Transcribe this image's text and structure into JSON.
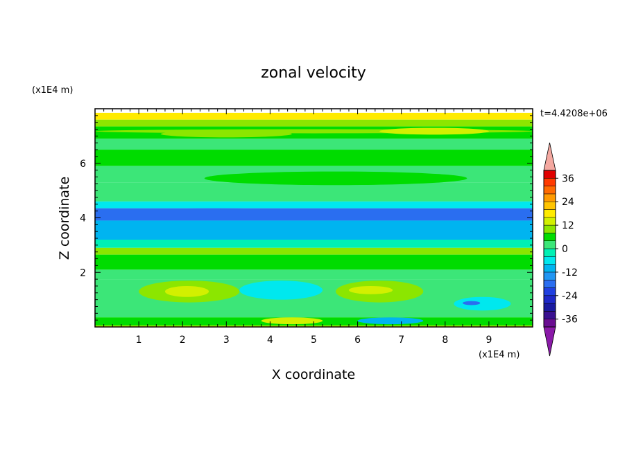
{
  "chart_data": {
    "type": "heatmap",
    "title": "zonal velocity",
    "xlabel": "X coordinate",
    "ylabel": "Z coordinate",
    "x_unit_label": "(x1E4 m)",
    "y_unit_label": "(x1E4 m)",
    "time_label": "t=4.4208e+06",
    "xlim": [
      0,
      10
    ],
    "ylim": [
      0,
      8
    ],
    "xticks": [
      1,
      2,
      3,
      4,
      5,
      6,
      7,
      8,
      9
    ],
    "yticks": [
      2,
      4,
      6
    ],
    "colorbar": {
      "levels": [
        -40,
        -36,
        -32,
        -28,
        -24,
        -20,
        -16,
        -12,
        -8,
        -4,
        0,
        4,
        8,
        12,
        16,
        20,
        24,
        28,
        32,
        36,
        40
      ],
      "tick_labels": [
        "36",
        "24",
        "12",
        "0",
        "-12",
        "-24",
        "-36"
      ],
      "tick_values": [
        36,
        24,
        12,
        0,
        -12,
        -24,
        -36
      ],
      "colors": [
        "#6a0d91",
        "#3a1090",
        "#1a1aa0",
        "#1e28c8",
        "#2040e0",
        "#2a6ef0",
        "#2196f3",
        "#00b4f0",
        "#00e8ee",
        "#00f0b4",
        "#3ce678",
        "#00dc00",
        "#8ce600",
        "#d2f000",
        "#ffeb00",
        "#ffc400",
        "#ff9a00",
        "#ff6a00",
        "#ff3a00",
        "#e00000"
      ],
      "extend_high_color": "#f4a8a0",
      "extend_low_color": "#8a1aa8"
    },
    "bands": [
      {
        "z": [
          7.6,
          7.85
        ],
        "value": 16
      },
      {
        "z": [
          7.35,
          7.6
        ],
        "value": 8
      },
      {
        "z": [
          6.9,
          7.35
        ],
        "value": 6
      },
      {
        "z": [
          6.5,
          6.9
        ],
        "value": 2
      },
      {
        "z": [
          5.9,
          6.5
        ],
        "value": 4
      },
      {
        "z": [
          5.3,
          5.9
        ],
        "value": 2
      },
      {
        "z": [
          4.6,
          5.3
        ],
        "value": 0
      },
      {
        "z": [
          4.35,
          4.6
        ],
        "value": -6
      },
      {
        "z": [
          3.9,
          4.35
        ],
        "value": -17
      },
      {
        "z": [
          3.2,
          3.9
        ],
        "value": -9
      },
      {
        "z": [
          2.9,
          3.2
        ],
        "value": -2
      },
      {
        "z": [
          2.65,
          2.9
        ],
        "value": 10
      },
      {
        "z": [
          2.1,
          2.65
        ],
        "value": 5
      },
      {
        "z": [
          1.75,
          2.1
        ],
        "value": 3
      },
      {
        "z": [
          0.35,
          1.75
        ],
        "value": 1
      },
      {
        "z": [
          0.05,
          0.35
        ],
        "value": 6
      },
      {
        "z": [
          0,
          0.05
        ],
        "value": 14
      }
    ],
    "features": [
      {
        "x": [
          0,
          10
        ],
        "z": [
          7.1,
          7.25
        ],
        "value": 9
      },
      {
        "x": [
          1.5,
          4.5
        ],
        "z": [
          6.95,
          7.2
        ],
        "value": 10
      },
      {
        "x": [
          6.5,
          9.0
        ],
        "z": [
          7.05,
          7.3
        ],
        "value": 13
      },
      {
        "x": [
          2.5,
          8.5
        ],
        "z": [
          5.2,
          5.7
        ],
        "value": 5
      },
      {
        "x": [
          0.5,
          5.0
        ],
        "z": [
          3.95,
          4.35
        ],
        "value": -20
      },
      {
        "x": [
          7.0,
          9.5
        ],
        "z": [
          4.0,
          4.2
        ],
        "value": -18
      },
      {
        "x": [
          1.0,
          3.3
        ],
        "z": [
          0.9,
          1.7
        ],
        "value": 10
      },
      {
        "x": [
          1.6,
          2.6
        ],
        "z": [
          1.1,
          1.5
        ],
        "value": 14
      },
      {
        "x": [
          5.5,
          7.5
        ],
        "z": [
          0.9,
          1.7
        ],
        "value": 10
      },
      {
        "x": [
          5.8,
          6.8
        ],
        "z": [
          1.2,
          1.5
        ],
        "value": 14
      },
      {
        "x": [
          3.3,
          5.2
        ],
        "z": [
          1.0,
          1.7
        ],
        "value": -6
      },
      {
        "x": [
          8.2,
          9.5
        ],
        "z": [
          0.6,
          1.1
        ],
        "value": -8
      },
      {
        "x": [
          8.4,
          8.8
        ],
        "z": [
          0.8,
          0.95
        ],
        "value": -18
      },
      {
        "x": [
          3.8,
          5.2
        ],
        "z": [
          0.1,
          0.35
        ],
        "value": 12
      },
      {
        "x": [
          6.0,
          7.5
        ],
        "z": [
          0.1,
          0.35
        ],
        "value": -10
      }
    ]
  }
}
